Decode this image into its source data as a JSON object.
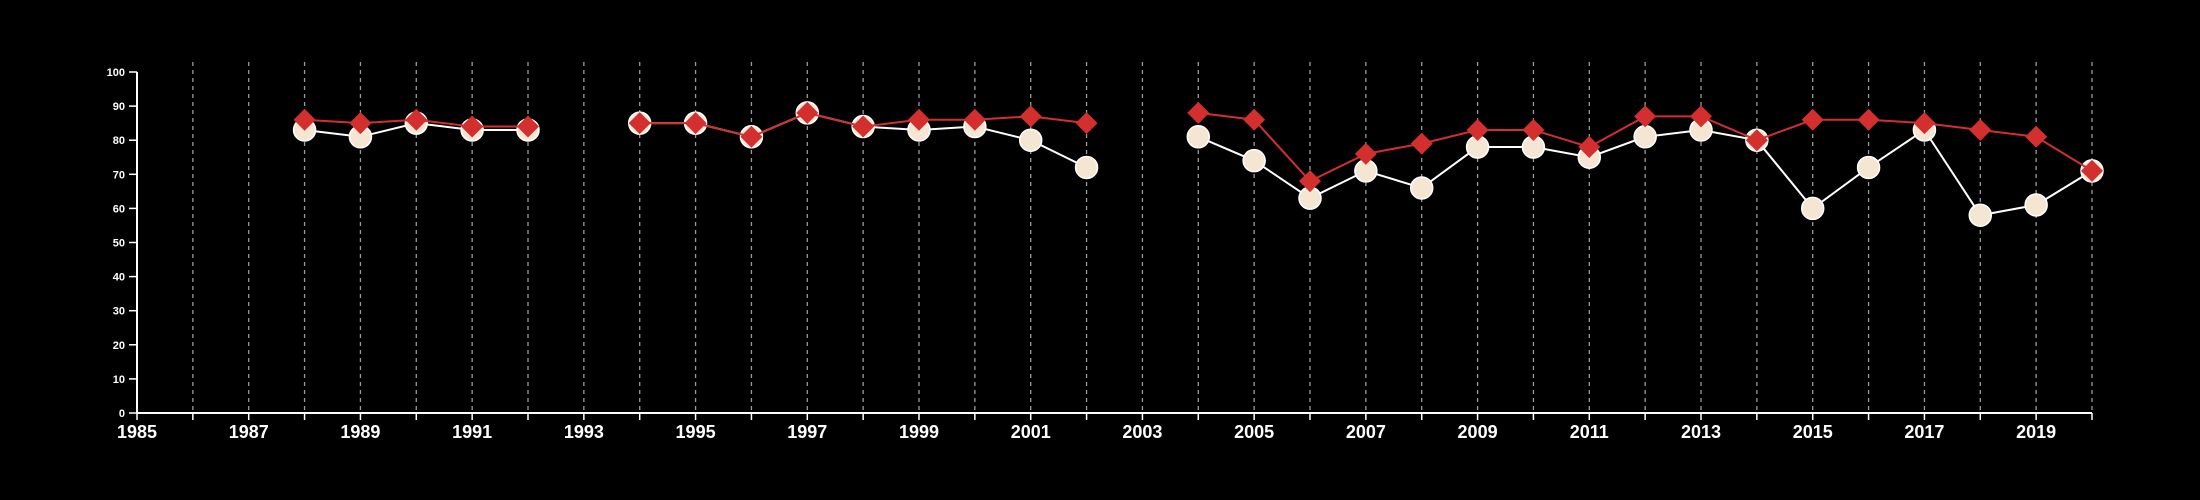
{
  "chart_data": {
    "type": "line",
    "title": "",
    "xlabel": "",
    "ylabel": "",
    "xlim": [
      1985,
      2020
    ],
    "ylim": [
      0,
      100
    ],
    "x_ticks": [
      1985,
      1987,
      1989,
      1991,
      1993,
      1995,
      1997,
      1999,
      2001,
      2003,
      2005,
      2007,
      2009,
      2011,
      2013,
      2015,
      2017,
      2019
    ],
    "y_ticks": [
      0,
      10,
      20,
      30,
      40,
      50,
      60,
      70,
      80,
      90,
      100
    ],
    "grid": "vertical dashed lines at each year",
    "legend": "none",
    "background_color": "#000000",
    "x": [
      1988,
      1989,
      1990,
      1991,
      1992,
      1994,
      1995,
      1996,
      1997,
      1998,
      1999,
      2000,
      2001,
      2002,
      2004,
      2005,
      2006,
      2007,
      2008,
      2009,
      2010,
      2011,
      2012,
      2013,
      2014,
      2015,
      2016,
      2017,
      2018,
      2019,
      2020
    ],
    "series": [
      {
        "marker": "circle",
        "color": "#f5e6d3",
        "line_color": "#ffffff",
        "values": [
          83,
          81,
          85,
          83,
          83,
          85,
          85,
          81,
          88,
          84,
          83,
          84,
          80,
          72,
          81,
          74,
          63,
          71,
          66,
          78,
          78,
          75,
          81,
          83,
          80,
          60,
          72,
          83,
          58,
          61,
          71
        ]
      },
      {
        "marker": "diamond",
        "color": "#d32f2f",
        "line_color": "#d32f2f",
        "values": [
          86,
          85,
          86,
          84,
          84,
          85,
          85,
          81,
          88,
          84,
          86,
          86,
          87,
          85,
          88,
          86,
          68,
          76,
          79,
          83,
          83,
          78,
          87,
          87,
          80,
          86,
          86,
          85,
          83,
          81,
          71
        ]
      }
    ]
  }
}
